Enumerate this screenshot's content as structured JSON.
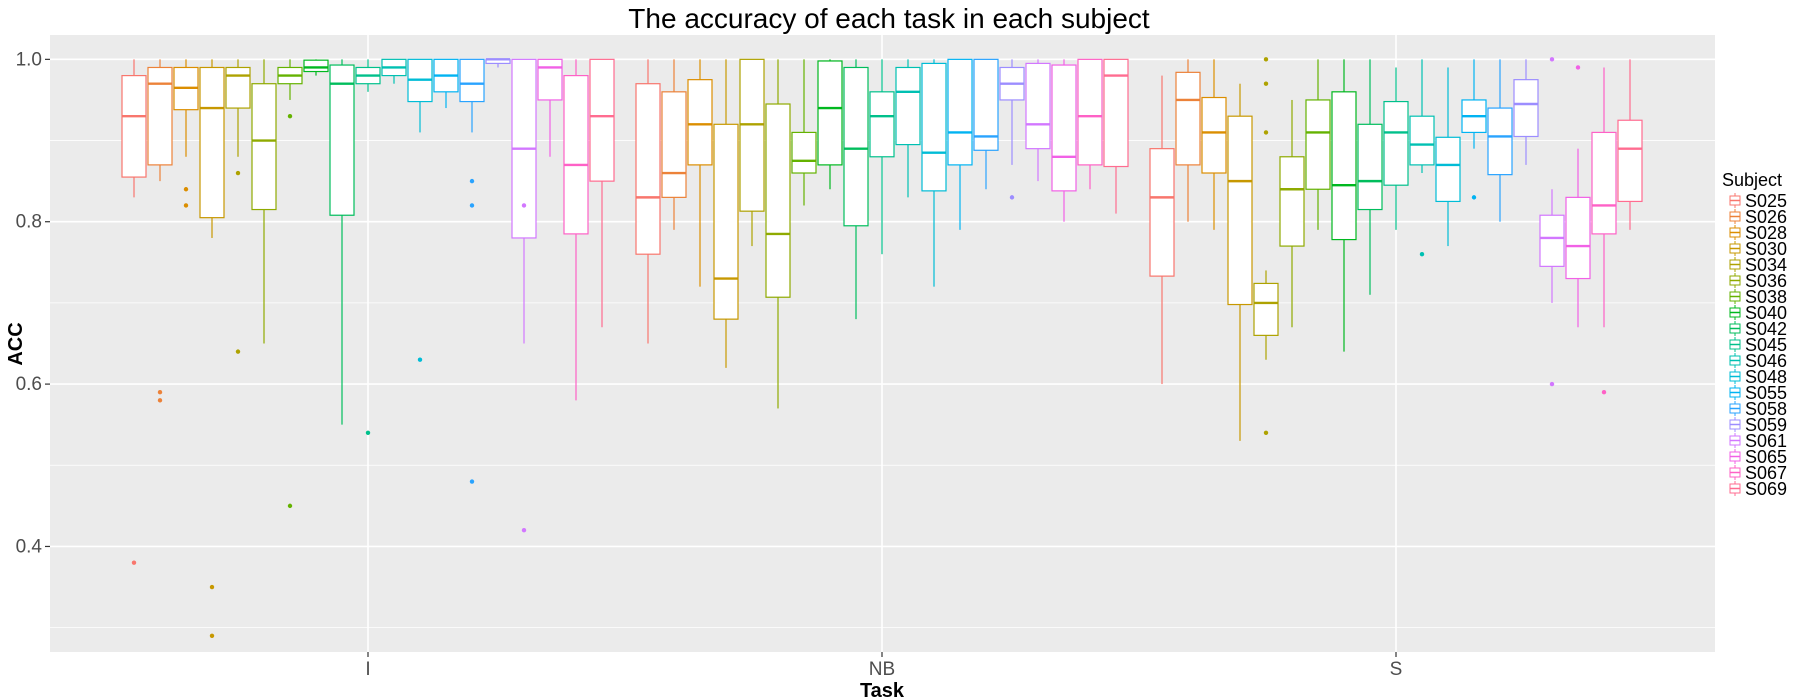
{
  "chart_data": {
    "type": "boxplot",
    "title": "The accuracy of each task in each subject",
    "xlabel": "Task",
    "ylabel": "ACC",
    "ylim": [
      0.27,
      1.03
    ],
    "yticks": [
      0.4,
      0.6,
      0.8,
      1.0
    ],
    "ytick_labels": [
      "0.4",
      "0.6",
      "0.8",
      "1.0"
    ],
    "grid": true,
    "legend_position": "right",
    "legend_title": "Subject",
    "categories": [
      "I",
      "NB",
      "S"
    ],
    "series": [
      {
        "name": "S025",
        "color": "#F8766D",
        "boxes": [
          {
            "min": 0.83,
            "q1": 0.855,
            "median": 0.93,
            "q3": 0.98,
            "max": 1.0,
            "outliers": [
              0.38
            ]
          },
          {
            "min": 0.65,
            "q1": 0.76,
            "median": 0.83,
            "q3": 0.97,
            "max": 1.0,
            "outliers": []
          },
          {
            "min": 0.6,
            "q1": 0.733,
            "median": 0.83,
            "q3": 0.89,
            "max": 0.98,
            "outliers": []
          }
        ]
      },
      {
        "name": "S026",
        "color": "#EC8239",
        "boxes": [
          {
            "min": 0.85,
            "q1": 0.87,
            "median": 0.97,
            "q3": 0.99,
            "max": 1.0,
            "outliers": [
              0.59,
              0.58
            ]
          },
          {
            "min": 0.79,
            "q1": 0.83,
            "median": 0.86,
            "q3": 0.96,
            "max": 1.0,
            "outliers": []
          },
          {
            "min": 0.8,
            "q1": 0.87,
            "median": 0.95,
            "q3": 0.984,
            "max": 1.0,
            "outliers": []
          }
        ]
      },
      {
        "name": "S028",
        "color": "#DB8E00",
        "boxes": [
          {
            "min": 0.88,
            "q1": 0.938,
            "median": 0.965,
            "q3": 0.99,
            "max": 1.0,
            "outliers": [
              0.84,
              0.82
            ]
          },
          {
            "min": 0.72,
            "q1": 0.87,
            "median": 0.92,
            "q3": 0.975,
            "max": 1.0,
            "outliers": []
          },
          {
            "min": 0.79,
            "q1": 0.86,
            "median": 0.91,
            "q3": 0.953,
            "max": 1.0,
            "outliers": []
          }
        ]
      },
      {
        "name": "S030",
        "color": "#C79800",
        "boxes": [
          {
            "min": 0.78,
            "q1": 0.805,
            "median": 0.94,
            "q3": 0.99,
            "max": 1.0,
            "outliers": [
              0.35,
              0.29
            ]
          },
          {
            "min": 0.62,
            "q1": 0.68,
            "median": 0.73,
            "q3": 0.92,
            "max": 1.0,
            "outliers": []
          },
          {
            "min": 0.53,
            "q1": 0.698,
            "median": 0.85,
            "q3": 0.93,
            "max": 0.97,
            "outliers": []
          }
        ]
      },
      {
        "name": "S034",
        "color": "#AEA200",
        "boxes": [
          {
            "min": 0.88,
            "q1": 0.94,
            "median": 0.98,
            "q3": 0.99,
            "max": 1.0,
            "outliers": [
              0.86,
              0.64
            ]
          },
          {
            "min": 0.77,
            "q1": 0.813,
            "median": 0.92,
            "q3": 1.0,
            "max": 1.0,
            "outliers": []
          },
          {
            "min": 0.63,
            "q1": 0.66,
            "median": 0.7,
            "q3": 0.724,
            "max": 0.74,
            "outliers": [
              1.0,
              0.97,
              0.91,
              0.54
            ]
          }
        ]
      },
      {
        "name": "S036",
        "color": "#8FAA00",
        "boxes": [
          {
            "min": 0.65,
            "q1": 0.815,
            "median": 0.9,
            "q3": 0.97,
            "max": 1.0,
            "outliers": []
          },
          {
            "min": 0.57,
            "q1": 0.707,
            "median": 0.785,
            "q3": 0.945,
            "max": 1.0,
            "outliers": []
          },
          {
            "min": 0.67,
            "q1": 0.77,
            "median": 0.84,
            "q3": 0.88,
            "max": 0.95,
            "outliers": []
          }
        ]
      },
      {
        "name": "S038",
        "color": "#64B200",
        "boxes": [
          {
            "min": 0.95,
            "q1": 0.97,
            "median": 0.98,
            "q3": 0.99,
            "max": 1.0,
            "outliers": [
              0.93,
              0.45
            ]
          },
          {
            "min": 0.82,
            "q1": 0.86,
            "median": 0.875,
            "q3": 0.91,
            "max": 1.0,
            "outliers": []
          },
          {
            "min": 0.79,
            "q1": 0.84,
            "median": 0.91,
            "q3": 0.95,
            "max": 1.0,
            "outliers": []
          }
        ]
      },
      {
        "name": "S040",
        "color": "#00B81F",
        "boxes": [
          {
            "min": 0.98,
            "q1": 0.985,
            "median": 0.99,
            "q3": 0.999,
            "max": 1.0,
            "outliers": []
          },
          {
            "min": 0.84,
            "q1": 0.87,
            "median": 0.94,
            "q3": 0.998,
            "max": 1.0,
            "outliers": []
          },
          {
            "min": 0.64,
            "q1": 0.778,
            "median": 0.845,
            "q3": 0.96,
            "max": 1.0,
            "outliers": []
          }
        ]
      },
      {
        "name": "S042",
        "color": "#00BD5C",
        "boxes": [
          {
            "min": 0.55,
            "q1": 0.808,
            "median": 0.97,
            "q3": 0.993,
            "max": 1.0,
            "outliers": []
          },
          {
            "min": 0.68,
            "q1": 0.795,
            "median": 0.89,
            "q3": 0.99,
            "max": 1.0,
            "outliers": []
          },
          {
            "min": 0.71,
            "q1": 0.815,
            "median": 0.85,
            "q3": 0.92,
            "max": 1.0,
            "outliers": []
          }
        ]
      },
      {
        "name": "S045",
        "color": "#00C08B",
        "boxes": [
          {
            "min": 0.96,
            "q1": 0.97,
            "median": 0.98,
            "q3": 0.99,
            "max": 1.0,
            "outliers": [
              0.54
            ]
          },
          {
            "min": 0.76,
            "q1": 0.88,
            "median": 0.93,
            "q3": 0.96,
            "max": 1.0,
            "outliers": []
          },
          {
            "min": 0.79,
            "q1": 0.845,
            "median": 0.91,
            "q3": 0.948,
            "max": 0.99,
            "outliers": []
          }
        ]
      },
      {
        "name": "S046",
        "color": "#00C0B2",
        "boxes": [
          {
            "min": 0.97,
            "q1": 0.98,
            "median": 0.99,
            "q3": 1.0,
            "max": 1.0,
            "outliers": []
          },
          {
            "min": 0.83,
            "q1": 0.895,
            "median": 0.96,
            "q3": 0.99,
            "max": 1.0,
            "outliers": []
          },
          {
            "min": 0.86,
            "q1": 0.87,
            "median": 0.895,
            "q3": 0.93,
            "max": 1.0,
            "outliers": [
              0.76
            ]
          }
        ]
      },
      {
        "name": "S048",
        "color": "#00BCD6",
        "boxes": [
          {
            "min": 0.91,
            "q1": 0.948,
            "median": 0.975,
            "q3": 1.0,
            "max": 1.0,
            "outliers": [
              0.63
            ]
          },
          {
            "min": 0.72,
            "q1": 0.838,
            "median": 0.885,
            "q3": 0.995,
            "max": 1.0,
            "outliers": []
          },
          {
            "min": 0.77,
            "q1": 0.825,
            "median": 0.87,
            "q3": 0.904,
            "max": 0.99,
            "outliers": []
          }
        ]
      },
      {
        "name": "S055",
        "color": "#00B3F2",
        "boxes": [
          {
            "min": 0.94,
            "q1": 0.96,
            "median": 0.98,
            "q3": 1.0,
            "max": 1.0,
            "outliers": []
          },
          {
            "min": 0.79,
            "q1": 0.87,
            "median": 0.91,
            "q3": 1.0,
            "max": 1.0,
            "outliers": []
          },
          {
            "min": 0.89,
            "q1": 0.91,
            "median": 0.93,
            "q3": 0.95,
            "max": 1.0,
            "outliers": [
              0.83
            ]
          }
        ]
      },
      {
        "name": "S058",
        "color": "#29A3FF",
        "boxes": [
          {
            "min": 0.91,
            "q1": 0.948,
            "median": 0.97,
            "q3": 1.0,
            "max": 1.0,
            "outliers": [
              0.85,
              0.82,
              0.48
            ]
          },
          {
            "min": 0.84,
            "q1": 0.888,
            "median": 0.905,
            "q3": 1.0,
            "max": 1.0,
            "outliers": []
          },
          {
            "min": 0.8,
            "q1": 0.858,
            "median": 0.905,
            "q3": 0.94,
            "max": 1.0,
            "outliers": []
          }
        ]
      },
      {
        "name": "S059",
        "color": "#9C8DFF",
        "boxes": [
          {
            "min": 0.99,
            "q1": 0.995,
            "median": 1.0,
            "q3": 1.0,
            "max": 1.0,
            "outliers": []
          },
          {
            "min": 0.87,
            "q1": 0.95,
            "median": 0.97,
            "q3": 0.99,
            "max": 1.0,
            "outliers": [
              0.83
            ]
          },
          {
            "min": 0.87,
            "q1": 0.905,
            "median": 0.945,
            "q3": 0.975,
            "max": 1.0,
            "outliers": []
          }
        ]
      },
      {
        "name": "S061",
        "color": "#D277FF",
        "boxes": [
          {
            "min": 0.65,
            "q1": 0.78,
            "median": 0.89,
            "q3": 1.0,
            "max": 1.0,
            "outliers": [
              0.82,
              0.42
            ]
          },
          {
            "min": 0.85,
            "q1": 0.89,
            "median": 0.92,
            "q3": 0.995,
            "max": 1.0,
            "outliers": []
          },
          {
            "min": 0.7,
            "q1": 0.745,
            "median": 0.78,
            "q3": 0.808,
            "max": 0.84,
            "outliers": [
              1.0,
              0.6
            ]
          }
        ]
      },
      {
        "name": "S065",
        "color": "#F161E6",
        "boxes": [
          {
            "min": 0.88,
            "q1": 0.95,
            "median": 0.99,
            "q3": 1.0,
            "max": 1.0,
            "outliers": []
          },
          {
            "min": 0.8,
            "q1": 0.838,
            "median": 0.88,
            "q3": 0.993,
            "max": 1.0,
            "outliers": []
          },
          {
            "min": 0.67,
            "q1": 0.73,
            "median": 0.77,
            "q3": 0.83,
            "max": 0.89,
            "outliers": [
              0.99
            ]
          }
        ]
      },
      {
        "name": "S067",
        "color": "#FE61C6",
        "boxes": [
          {
            "min": 0.58,
            "q1": 0.785,
            "median": 0.87,
            "q3": 0.98,
            "max": 1.0,
            "outliers": []
          },
          {
            "min": 0.84,
            "q1": 0.87,
            "median": 0.93,
            "q3": 1.0,
            "max": 1.0,
            "outliers": []
          },
          {
            "min": 0.67,
            "q1": 0.785,
            "median": 0.82,
            "q3": 0.91,
            "max": 0.99,
            "outliers": [
              0.59
            ]
          }
        ]
      },
      {
        "name": "S069",
        "color": "#FF6C90",
        "boxes": [
          {
            "min": 0.67,
            "q1": 0.85,
            "median": 0.93,
            "q3": 1.0,
            "max": 1.0,
            "outliers": []
          },
          {
            "min": 0.81,
            "q1": 0.868,
            "median": 0.98,
            "q3": 1.0,
            "max": 1.0,
            "outliers": []
          },
          {
            "min": 0.79,
            "q1": 0.825,
            "median": 0.89,
            "q3": 0.925,
            "max": 1.0,
            "outliers": []
          }
        ]
      }
    ]
  }
}
